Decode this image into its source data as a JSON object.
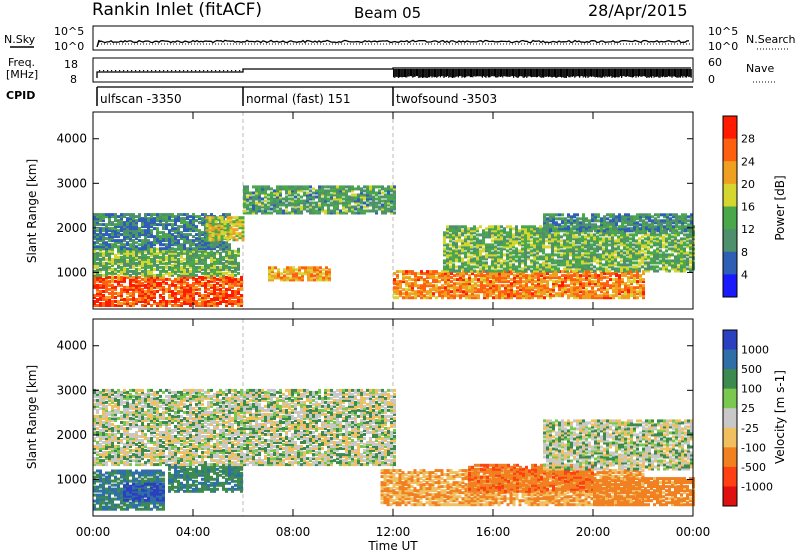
{
  "header": {
    "station": "Rankin Inlet (fitACF)",
    "beam": "Beam 05",
    "date": "28/Apr/2015"
  },
  "strip_labels": {
    "nsky": "N.Sky",
    "freq_line1": "Freq.",
    "freq_line2": "[MHz]",
    "cpid": "CPID",
    "nsearch": "N.Search",
    "nave": "Nave",
    "noise_tick_hi": "10^5",
    "noise_tick_lo": "10^0",
    "freq_tick_hi": "18",
    "freq_tick_lo": "8",
    "nave_tick_hi": "60",
    "nave_tick_lo": "0"
  },
  "cpid_segments": [
    {
      "label": "ulfscan -3350",
      "start_hour": 0.0,
      "end_hour": 6.0
    },
    {
      "label": "normal (fast) 151",
      "start_hour": 6.0,
      "end_hour": 12.0
    },
    {
      "label": "twofsound -3503",
      "start_hour": 12.0,
      "end_hour": 24.0
    }
  ],
  "axes": {
    "xlabel": "Time UT",
    "ylabel": "Slant Range [km]",
    "x_ticks": [
      "00:00",
      "04:00",
      "08:00",
      "12:00",
      "16:00",
      "20:00",
      "00:00"
    ],
    "y_ticks": [
      "1000",
      "2000",
      "3000",
      "4000"
    ],
    "colors": {
      "axis": "#000000"
    }
  },
  "power_colorbar": {
    "label": "Power [dB]",
    "ticks": [
      "4",
      "8",
      "12",
      "16",
      "20",
      "24",
      "28"
    ],
    "colors": [
      "#1a1aff",
      "#2e5fb5",
      "#4e8f6c",
      "#4aa84a",
      "#d6d630",
      "#f0a020",
      "#ff6010",
      "#ff1a00"
    ]
  },
  "velocity_colorbar": {
    "label": "Velocity [m s-1]",
    "ticks": [
      "1000",
      "500",
      "100",
      "25",
      "-25",
      "-100",
      "-500",
      "-1000"
    ],
    "colors": [
      "#2a40c0",
      "#2f6fa8",
      "#3c8a4e",
      "#7ac850",
      "#c8c8c8",
      "#f0c060",
      "#f08020",
      "#ff4010",
      "#e01010"
    ]
  },
  "chart_data": [
    {
      "type": "heatmap",
      "title": "Power [dB]",
      "xlabel": "Time UT",
      "ylabel": "Slant Range [km]",
      "xlim": [
        0,
        24
      ],
      "ylim": [
        180,
        4600
      ],
      "zlim": [
        0,
        32
      ],
      "blobs": [
        {
          "t0": 0.0,
          "t1": 6.0,
          "r0": 180,
          "r1": 900,
          "v": 27
        },
        {
          "t0": 0.0,
          "t1": 5.8,
          "r0": 900,
          "r1": 1500,
          "v": 14
        },
        {
          "t0": 0.0,
          "t1": 5.5,
          "r0": 1500,
          "r1": 2300,
          "v": 9
        },
        {
          "t0": 4.5,
          "t1": 6.0,
          "r0": 1700,
          "r1": 2200,
          "v": 18
        },
        {
          "t0": 6.0,
          "t1": 12.0,
          "r0": 2300,
          "r1": 2900,
          "v": 12
        },
        {
          "t0": 7.0,
          "t1": 9.5,
          "r0": 800,
          "r1": 1100,
          "v": 22
        },
        {
          "t0": 12.0,
          "t1": 22.0,
          "r0": 400,
          "r1": 1000,
          "v": 24
        },
        {
          "t0": 14.0,
          "t1": 24.0,
          "r0": 1000,
          "r1": 2000,
          "v": 14
        },
        {
          "t0": 18.0,
          "t1": 24.0,
          "r0": 1900,
          "r1": 2300,
          "v": 10
        }
      ]
    },
    {
      "type": "heatmap",
      "title": "Velocity [m s-1]",
      "xlabel": "Time UT",
      "ylabel": "Slant Range [km]",
      "xlim": [
        0,
        24
      ],
      "ylim": [
        180,
        4600
      ],
      "zlim": [
        -1000,
        1000
      ],
      "blobs": [
        {
          "t0": 0.0,
          "t1": 2.8,
          "r0": 300,
          "r1": 1200,
          "v": 300
        },
        {
          "t0": 1.2,
          "t1": 2.8,
          "r0": 500,
          "r1": 900,
          "v": 800
        },
        {
          "t0": 3.0,
          "t1": 6.0,
          "r0": 700,
          "r1": 1300,
          "v": 250
        },
        {
          "t0": 0.0,
          "t1": 12.0,
          "r0": 1300,
          "r1": 3000,
          "v": 0
        },
        {
          "t0": 11.5,
          "t1": 22.0,
          "r0": 400,
          "r1": 1200,
          "v": -300
        },
        {
          "t0": 15.0,
          "t1": 20.0,
          "r0": 700,
          "r1": 1300,
          "v": -700
        },
        {
          "t0": 18.0,
          "t1": 24.0,
          "r0": 1200,
          "r1": 2300,
          "v": 0
        },
        {
          "t0": 20.0,
          "t1": 24.0,
          "r0": 400,
          "r1": 1000,
          "v": -400
        }
      ]
    }
  ]
}
